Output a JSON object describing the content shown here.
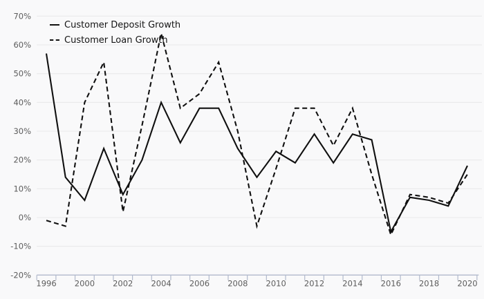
{
  "chart": {
    "legend": [
      {
        "label": "Customer Deposit Growth",
        "style": "solid"
      },
      {
        "label": "Customer Loan Growth",
        "style": "dashed"
      }
    ],
    "colors": {
      "background": "#f9f9fa",
      "gridline": "#e9e9ea",
      "axis_line": "#b1b9cc",
      "tick_label": "#5c5c5c",
      "line": "#101010",
      "legend_text": "#141414"
    }
  },
  "chart_data": {
    "type": "line",
    "x": [
      1996,
      1999,
      2000,
      2001,
      2002,
      2003,
      2004,
      2005,
      2006,
      2007,
      2008,
      2009,
      2010,
      2011,
      2012,
      2013,
      2014,
      2015,
      2016,
      2017,
      2018,
      2019,
      2020
    ],
    "x_tick_labels": [
      "1996",
      "2000",
      "2002",
      "2004",
      "2006",
      "2008",
      "2010",
      "2012",
      "2014",
      "2016",
      "2018",
      "2020"
    ],
    "series": [
      {
        "name": "Customer Deposit Growth",
        "style": "solid",
        "values": [
          57,
          14,
          6,
          24,
          8,
          20,
          40,
          26,
          38,
          38,
          24,
          14,
          23,
          19,
          29,
          19,
          29,
          27,
          -5,
          7,
          6,
          4,
          18
        ]
      },
      {
        "name": "Customer Loan Growth",
        "style": "dashed",
        "values": [
          -1,
          -3,
          40,
          54,
          2,
          32,
          64,
          38,
          43,
          54,
          30,
          -3,
          17,
          38,
          38,
          25,
          38,
          15,
          -6,
          8,
          7,
          5,
          15
        ]
      }
    ],
    "ylim": [
      -20,
      70
    ],
    "y_ticks": [
      70,
      60,
      50,
      40,
      30,
      20,
      10,
      0,
      -10,
      -20
    ],
    "y_tick_format": "percent",
    "grid": "horizontal",
    "legend_position": "top-left",
    "title": "",
    "xlabel": "",
    "ylabel": ""
  }
}
